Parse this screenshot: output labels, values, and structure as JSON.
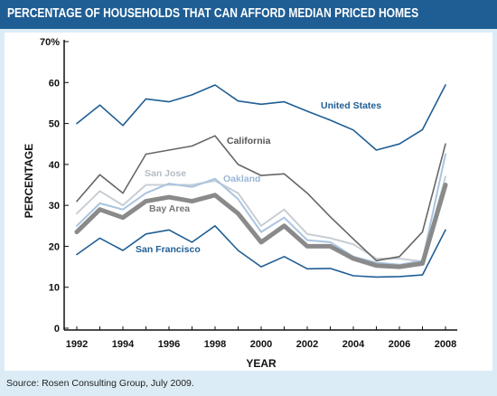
{
  "title": "PERCENTAGE OF HOUSEHOLDS THAT CAN AFFORD MEDIAN PRICED HOMES",
  "source": "Source: Rosen Consulting Group, July 2009.",
  "colors": {
    "header": "#1f5e94",
    "frame": "#dcecf6",
    "united_states": "#1f5e94",
    "california": "#666666",
    "san_jose": "#c8ced4",
    "oakland": "#a9c4e0",
    "bay_area": "#8a8a8a",
    "san_francisco": "#1f5e94"
  },
  "chart_data": {
    "type": "line",
    "title": "PERCENTAGE OF HOUSEHOLDS THAT CAN AFFORD MEDIAN PRICED HOMES",
    "xlabel": "YEAR",
    "ylabel": "PERCENTAGE",
    "xlim": [
      1992,
      2008
    ],
    "ylim": [
      0,
      70
    ],
    "xticks": [
      "1992",
      "1994",
      "1996",
      "1998",
      "2000",
      "2002",
      "2004",
      "2006",
      "2008"
    ],
    "yticks": [
      "0",
      "10",
      "20",
      "30",
      "40",
      "50",
      "60",
      "70%"
    ],
    "grid": false,
    "x": [
      1992,
      1993,
      1994,
      1995,
      1996,
      1997,
      1998,
      1999,
      2000,
      2001,
      2002,
      2003,
      2004,
      2005,
      2006,
      2007,
      2008
    ],
    "series": [
      {
        "name": "United States",
        "color": "#1f5e94",
        "values": [
          50,
          54.5,
          49.5,
          56,
          55.3,
          57,
          59.4,
          55.5,
          54.7,
          55.3,
          53,
          50.8,
          48.4,
          43.5,
          45,
          48.5,
          59.4
        ]
      },
      {
        "name": "California",
        "color": "#666666",
        "values": [
          31,
          37.5,
          33,
          42.5,
          43.5,
          44.5,
          47,
          40,
          37.3,
          37.7,
          33,
          27.2,
          21.8,
          16.5,
          17.5,
          23.5,
          45
        ]
      },
      {
        "name": "San Jose",
        "color": "#c8ced4",
        "values": [
          28,
          33.5,
          30,
          35,
          35,
          35,
          36,
          33,
          25,
          29,
          23,
          22,
          20.5,
          17,
          17,
          16.3,
          37
        ]
      },
      {
        "name": "Oakland",
        "color": "#a9c4e0",
        "values": [
          25,
          30.5,
          29,
          33,
          35.3,
          34.5,
          36.5,
          31.5,
          23.5,
          27,
          21.5,
          21,
          17.5,
          16,
          15.5,
          16.5,
          42.5
        ]
      },
      {
        "name": "Bay Area",
        "color": "#8a8a8a",
        "values": [
          23.5,
          29,
          27,
          31,
          32,
          31,
          32.5,
          28,
          21,
          25,
          20,
          20,
          17,
          15.3,
          15,
          15.8,
          35
        ]
      },
      {
        "name": "San Francisco",
        "color": "#1f5e94",
        "values": [
          18,
          22,
          19,
          23,
          24,
          21,
          25,
          19,
          15,
          17.5,
          14.5,
          14.6,
          12.8,
          12.5,
          12.6,
          13,
          24
        ]
      }
    ]
  }
}
